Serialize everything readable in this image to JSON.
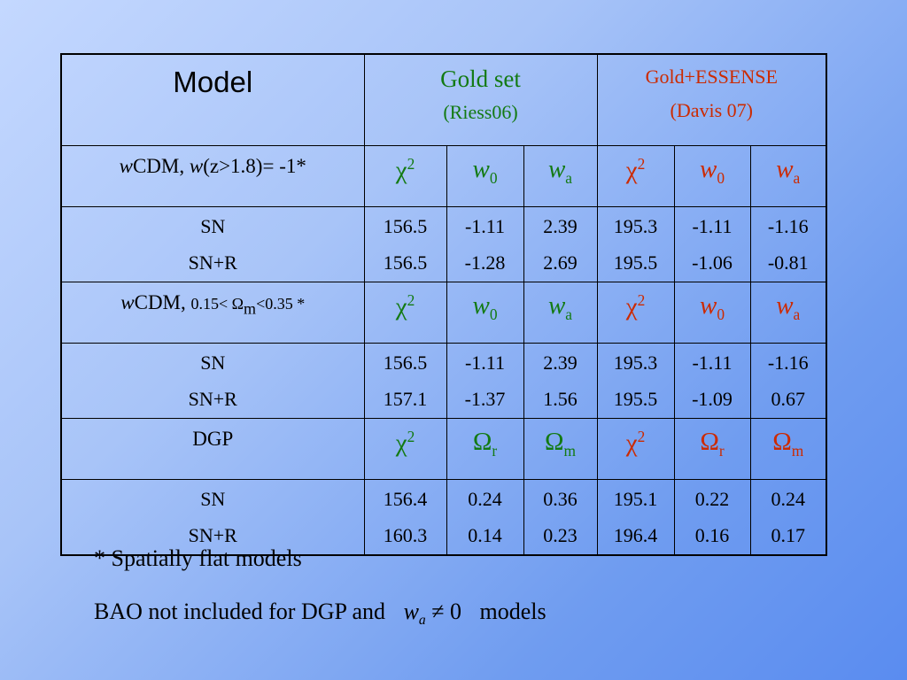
{
  "header": {
    "model": "Model",
    "gold_set": [
      "Gold set",
      "(Riess06)"
    ],
    "gold_essense": [
      "Gold+ESSENSE",
      "(Davis 07)"
    ]
  },
  "sections": [
    {
      "label": [
        {
          "text": "w"
        },
        {
          "text": "CDM, "
        },
        {
          "text": "w"
        },
        {
          "text": "(z>1.8)= -1*"
        }
      ],
      "columns": [
        {
          "base": "χ",
          "sup": "2"
        },
        {
          "base": "w",
          "sub": "0"
        },
        {
          "base": "w",
          "sub": "a"
        },
        {
          "base": "χ",
          "sup": "2"
        },
        {
          "base": "w",
          "sub": "0"
        },
        {
          "base": "w",
          "sub": "a"
        }
      ],
      "rows": [
        {
          "name": "SN",
          "values": [
            "156.5",
            "-1.11",
            "2.39",
            "195.3",
            "-1.11",
            "-1.16"
          ]
        },
        {
          "name": "SN+R",
          "values": [
            "156.5",
            "-1.28",
            "2.69",
            "195.5",
            "-1.06",
            "-0.81"
          ]
        }
      ]
    },
    {
      "label": [
        {
          "text": "w"
        },
        {
          "text": "CDM, "
        },
        {
          "text": "0.15< Ω"
        },
        {
          "sub": "m"
        },
        {
          "text": "<0.35 *"
        }
      ],
      "columns": [
        {
          "base": "χ",
          "sup": "2"
        },
        {
          "base": "w",
          "sub": "0"
        },
        {
          "base": "w",
          "sub": "a"
        },
        {
          "base": "χ",
          "sup": "2"
        },
        {
          "base": "w",
          "sub": "0"
        },
        {
          "base": "w",
          "sub": "a"
        }
      ],
      "rows": [
        {
          "name": "SN",
          "values": [
            "156.5",
            "-1.11",
            "2.39",
            "195.3",
            "-1.11",
            "-1.16"
          ]
        },
        {
          "name": "SN+R",
          "values": [
            "157.1",
            "-1.37",
            "1.56",
            "195.5",
            "-1.09",
            "0.67"
          ]
        }
      ]
    },
    {
      "label": [
        {
          "text": "DGP"
        }
      ],
      "columns": [
        {
          "base": "χ",
          "sup": "2"
        },
        {
          "base": "Ω",
          "sub": "r"
        },
        {
          "base": "Ω",
          "sub": "m"
        },
        {
          "base": "χ",
          "sup": "2"
        },
        {
          "base": "Ω",
          "sub": "r"
        },
        {
          "base": "Ω",
          "sub": "m"
        }
      ],
      "rows": [
        {
          "name": "SN",
          "values": [
            "156.4",
            "0.24",
            "0.36",
            "195.1",
            "0.22",
            "0.24"
          ]
        },
        {
          "name": "SN+R",
          "values": [
            "160.3",
            "0.14",
            "0.23",
            "196.4",
            "0.16",
            "0.17"
          ]
        }
      ]
    }
  ],
  "notes": {
    "flat": "* Spatially flat models",
    "bao": "BAO not included for DGP and",
    "math": {
      "base": "w",
      "sub": "a",
      "rel": "≠ 0"
    },
    "tail": "models"
  }
}
